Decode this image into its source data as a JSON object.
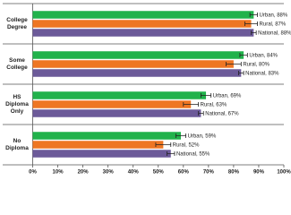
{
  "chart_data": {
    "type": "bar",
    "orientation": "horizontal",
    "categories": [
      "College Degree",
      "Some College",
      "HS Diploma Only",
      "No Diploma"
    ],
    "series": [
      {
        "name": "Urban",
        "color": "#21b24b",
        "values": [
          88,
          84,
          69,
          59
        ],
        "errors": [
          1.5,
          1.5,
          2,
          2
        ],
        "value_labels": [
          "Urban, 88%",
          "Urban, 84%",
          "Urban, 69%",
          "Urban, 59%"
        ]
      },
      {
        "name": "Rural",
        "color": "#ee7623",
        "values": [
          87,
          80,
          63,
          52
        ],
        "errors": [
          2.5,
          3,
          3,
          3
        ],
        "value_labels": [
          "Rural, 87%",
          "Rural, 80%",
          "Rural, 63%",
          "Rural, 52%"
        ]
      },
      {
        "name": "National",
        "color": "#6c5a99",
        "values": [
          88,
          83,
          67,
          55
        ],
        "errors": [
          1,
          1,
          1,
          1.5
        ],
        "value_labels": [
          "National, 88%",
          "National, 83%",
          "National, 67%",
          "National, 55%"
        ]
      }
    ],
    "xlim": [
      0,
      100
    ],
    "xticks": [
      {
        "value": 0,
        "label": "0%"
      },
      {
        "value": 10,
        "label": "10%"
      },
      {
        "value": 20,
        "label": "20%"
      },
      {
        "value": 30,
        "label": "30%"
      },
      {
        "value": 40,
        "label": "40%"
      },
      {
        "value": 50,
        "label": "50%"
      },
      {
        "value": 60,
        "label": "60%"
      },
      {
        "value": 70,
        "label": "70%"
      },
      {
        "value": 80,
        "label": "80%"
      },
      {
        "value": 90,
        "label": "90%"
      },
      {
        "value": 100,
        "label": "100%"
      }
    ]
  }
}
